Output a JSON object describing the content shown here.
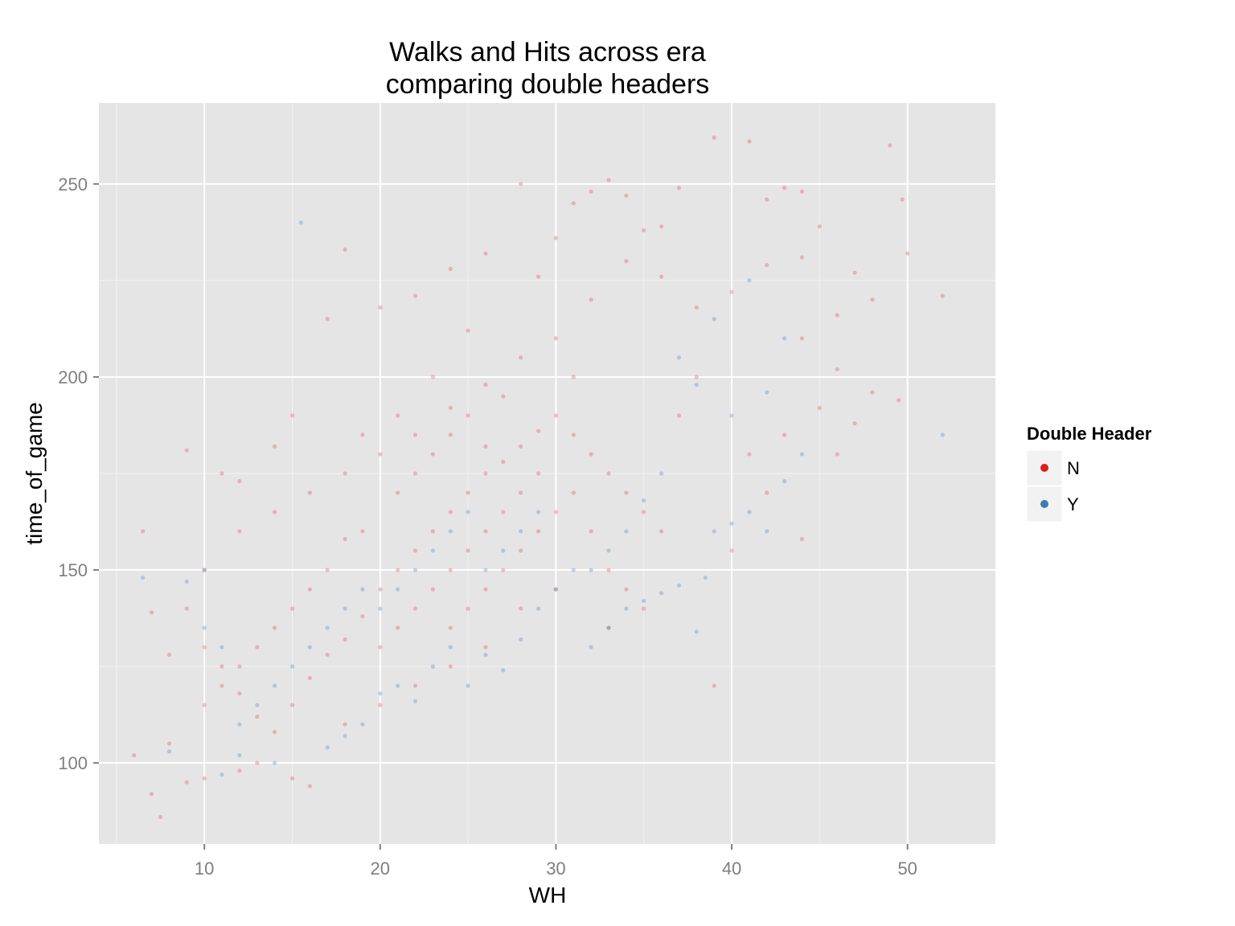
{
  "chart_data": {
    "type": "scatter",
    "title_line1": "Walks and Hits across era",
    "title_line2": "comparing double headers",
    "xlabel": "WH",
    "ylabel": "time_of_game",
    "xlim": [
      4,
      55
    ],
    "ylim": [
      79,
      271
    ],
    "x_ticks": [
      10,
      20,
      30,
      40,
      50
    ],
    "y_ticks": [
      100,
      150,
      200,
      250
    ],
    "x_tick_labels": [
      "10",
      "20",
      "30",
      "40",
      "50"
    ],
    "y_tick_labels": [
      "100",
      "150",
      "200",
      "250"
    ],
    "grid": true,
    "legend": {
      "title": "Double Header",
      "placement": "right",
      "entries": [
        "N",
        "Y"
      ]
    },
    "series": [
      {
        "name": "N",
        "color": "#e41a1c",
        "alpha": 0.25,
        "points": [
          [
            6,
            102
          ],
          [
            7,
            92
          ],
          [
            7.5,
            86
          ],
          [
            8,
            105
          ],
          [
            9,
            95
          ],
          [
            10,
            96
          ],
          [
            12,
            98
          ],
          [
            13,
            100
          ],
          [
            15,
            96
          ],
          [
            16,
            94
          ],
          [
            6.5,
            160
          ],
          [
            9,
            181
          ],
          [
            7,
            139
          ],
          [
            8,
            128
          ],
          [
            11,
            175
          ],
          [
            12,
            173
          ],
          [
            14,
            182
          ],
          [
            15,
            190
          ],
          [
            18,
            233
          ],
          [
            17,
            215
          ],
          [
            20,
            218
          ],
          [
            22,
            221
          ],
          [
            24,
            228
          ],
          [
            25,
            212
          ],
          [
            26,
            232
          ],
          [
            28,
            250
          ],
          [
            29,
            226
          ],
          [
            30,
            236
          ],
          [
            31,
            245
          ],
          [
            32,
            248
          ],
          [
            33,
            251
          ],
          [
            34,
            247
          ],
          [
            35,
            238
          ],
          [
            36,
            239
          ],
          [
            37,
            249
          ],
          [
            39,
            262
          ],
          [
            41,
            261
          ],
          [
            42,
            246
          ],
          [
            43,
            249
          ],
          [
            44,
            248
          ],
          [
            45,
            239
          ],
          [
            47,
            227
          ],
          [
            48,
            220
          ],
          [
            49,
            260
          ],
          [
            49.7,
            246
          ],
          [
            49.5,
            194
          ],
          [
            48,
            196
          ],
          [
            52,
            221
          ],
          [
            50,
            232
          ],
          [
            46,
            216
          ],
          [
            44,
            231
          ],
          [
            42,
            229
          ],
          [
            40,
            222
          ],
          [
            38,
            218
          ],
          [
            36,
            226
          ],
          [
            34,
            230
          ],
          [
            32,
            220
          ],
          [
            31,
            200
          ],
          [
            30,
            210
          ],
          [
            28,
            205
          ],
          [
            26,
            198
          ],
          [
            24,
            192
          ],
          [
            22,
            185
          ],
          [
            20,
            180
          ],
          [
            18,
            175
          ],
          [
            16,
            170
          ],
          [
            14,
            165
          ],
          [
            12,
            160
          ],
          [
            10,
            150
          ],
          [
            9,
            140
          ],
          [
            10,
            130
          ],
          [
            11,
            125
          ],
          [
            12,
            118
          ],
          [
            13,
            112
          ],
          [
            14,
            108
          ],
          [
            15,
            115
          ],
          [
            16,
            122
          ],
          [
            17,
            128
          ],
          [
            18,
            132
          ],
          [
            19,
            138
          ],
          [
            20,
            145
          ],
          [
            21,
            150
          ],
          [
            22,
            155
          ],
          [
            23,
            160
          ],
          [
            24,
            165
          ],
          [
            25,
            170
          ],
          [
            26,
            175
          ],
          [
            27,
            178
          ],
          [
            28,
            182
          ],
          [
            29,
            186
          ],
          [
            30,
            190
          ],
          [
            31,
            185
          ],
          [
            32,
            180
          ],
          [
            33,
            175
          ],
          [
            34,
            170
          ],
          [
            35,
            165
          ],
          [
            36,
            160
          ],
          [
            37,
            190
          ],
          [
            38,
            200
          ],
          [
            39,
            120
          ],
          [
            40,
            155
          ],
          [
            41,
            180
          ],
          [
            42,
            170
          ],
          [
            44,
            158
          ],
          [
            43,
            185
          ],
          [
            45,
            192
          ],
          [
            46,
            180
          ],
          [
            47,
            188
          ],
          [
            46,
            202
          ],
          [
            44,
            210
          ],
          [
            20,
            130
          ],
          [
            21,
            135
          ],
          [
            22,
            140
          ],
          [
            23,
            145
          ],
          [
            24,
            150
          ],
          [
            25,
            155
          ],
          [
            26,
            160
          ],
          [
            27,
            165
          ],
          [
            28,
            170
          ],
          [
            29,
            175
          ],
          [
            19,
            160
          ],
          [
            18,
            158
          ],
          [
            17,
            150
          ],
          [
            16,
            145
          ],
          [
            15,
            140
          ],
          [
            14,
            135
          ],
          [
            13,
            130
          ],
          [
            12,
            125
          ],
          [
            11,
            120
          ],
          [
            10,
            115
          ],
          [
            21,
            170
          ],
          [
            22,
            175
          ],
          [
            23,
            180
          ],
          [
            24,
            185
          ],
          [
            25,
            190
          ],
          [
            26,
            182
          ],
          [
            27,
            195
          ],
          [
            23,
            200
          ],
          [
            21,
            190
          ],
          [
            19,
            185
          ],
          [
            24,
            135
          ],
          [
            25,
            140
          ],
          [
            26,
            145
          ],
          [
            27,
            150
          ],
          [
            28,
            155
          ],
          [
            29,
            160
          ],
          [
            30,
            165
          ],
          [
            31,
            170
          ],
          [
            32,
            160
          ],
          [
            33,
            150
          ],
          [
            34,
            145
          ],
          [
            35,
            140
          ],
          [
            33,
            135
          ],
          [
            30,
            145
          ],
          [
            28,
            140
          ],
          [
            26,
            130
          ],
          [
            24,
            125
          ],
          [
            22,
            120
          ],
          [
            20,
            115
          ],
          [
            18,
            110
          ]
        ]
      },
      {
        "name": "Y",
        "color": "#377eb8",
        "alpha": 0.3,
        "points": [
          [
            6.5,
            148
          ],
          [
            8,
            103
          ],
          [
            9,
            147
          ],
          [
            10,
            150
          ],
          [
            11,
            97
          ],
          [
            12,
            102
          ],
          [
            14,
            100
          ],
          [
            15.5,
            240
          ],
          [
            17,
            104
          ],
          [
            18,
            107
          ],
          [
            19,
            110
          ],
          [
            20,
            118
          ],
          [
            21,
            120
          ],
          [
            22,
            116
          ],
          [
            23,
            125
          ],
          [
            24,
            130
          ],
          [
            25,
            120
          ],
          [
            26,
            128
          ],
          [
            27,
            124
          ],
          [
            28,
            132
          ],
          [
            29,
            140
          ],
          [
            30,
            145
          ],
          [
            31,
            150
          ],
          [
            32,
            130
          ],
          [
            33,
            135
          ],
          [
            34,
            140
          ],
          [
            35,
            142
          ],
          [
            36,
            144
          ],
          [
            37,
            146
          ],
          [
            38,
            134
          ],
          [
            38.5,
            148
          ],
          [
            39,
            160
          ],
          [
            40,
            162
          ],
          [
            41,
            165
          ],
          [
            42,
            160
          ],
          [
            43,
            173
          ],
          [
            44,
            180
          ],
          [
            52,
            185
          ],
          [
            38,
            198
          ],
          [
            37,
            205
          ],
          [
            39,
            215
          ],
          [
            41,
            225
          ],
          [
            43,
            210
          ],
          [
            42,
            196
          ],
          [
            40,
            190
          ],
          [
            36,
            175
          ],
          [
            35,
            168
          ],
          [
            34,
            160
          ],
          [
            33,
            155
          ],
          [
            32,
            150
          ],
          [
            20,
            140
          ],
          [
            21,
            145
          ],
          [
            22,
            150
          ],
          [
            23,
            155
          ],
          [
            24,
            160
          ],
          [
            25,
            165
          ],
          [
            26,
            150
          ],
          [
            27,
            155
          ],
          [
            28,
            160
          ],
          [
            29,
            165
          ],
          [
            15,
            125
          ],
          [
            16,
            130
          ],
          [
            17,
            135
          ],
          [
            18,
            140
          ],
          [
            19,
            145
          ],
          [
            14,
            120
          ],
          [
            13,
            115
          ],
          [
            12,
            110
          ],
          [
            11,
            130
          ],
          [
            10,
            135
          ]
        ]
      }
    ]
  }
}
